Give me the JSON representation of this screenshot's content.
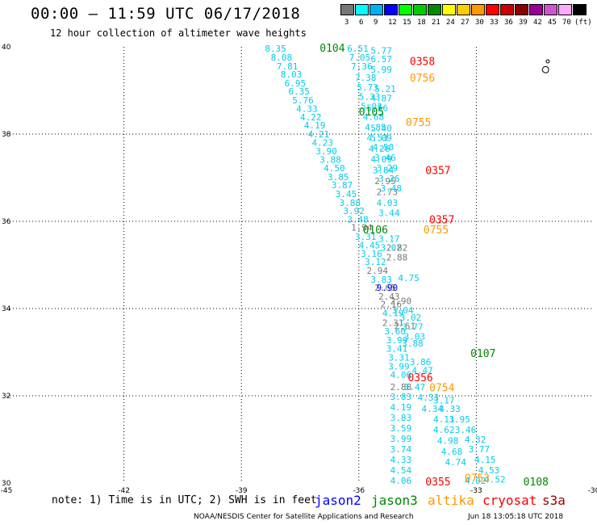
{
  "header": {
    "title": "00:00 – 11:59 UTC 06/17/2018",
    "subtitle": "12 hour collection of altimeter wave heights"
  },
  "colorbar": {
    "unit": "(ft)",
    "bins": [
      {
        "label": "3",
        "color": "#777777"
      },
      {
        "label": "6",
        "color": "#00ffff"
      },
      {
        "label": "9",
        "color": "#00b0f0"
      },
      {
        "label": "12",
        "color": "#0000ff"
      },
      {
        "label": "15",
        "color": "#00ff00"
      },
      {
        "label": "18",
        "color": "#00cc00"
      },
      {
        "label": "21",
        "color": "#008800"
      },
      {
        "label": "24",
        "color": "#ffff00"
      },
      {
        "label": "27",
        "color": "#ffcc00"
      },
      {
        "label": "30",
        "color": "#ff9900"
      },
      {
        "label": "33",
        "color": "#ff0000"
      },
      {
        "label": "36",
        "color": "#cc0000"
      },
      {
        "label": "39",
        "color": "#880000"
      },
      {
        "label": "42",
        "color": "#990099"
      },
      {
        "label": "45",
        "color": "#cc55cc"
      },
      {
        "label": "70",
        "color": "#ffaaff"
      },
      {
        "label": "",
        "color": "#000000"
      }
    ]
  },
  "map": {
    "lon_ticks": [
      "-45",
      "-42",
      "-39",
      "-36",
      "-33",
      "-30"
    ],
    "lat_ticks": [
      "40",
      "38",
      "36",
      "34",
      "32",
      "30"
    ],
    "lon_range": [
      -45,
      -30
    ],
    "lat_range": [
      30,
      40
    ],
    "colors": {
      "cyan": "#00ccee",
      "gray": "#777777",
      "blue": "#0000ff",
      "green": "#008800",
      "red": "#ff0000",
      "orange": "#ff9900"
    },
    "points": [
      {
        "t": "8.35",
        "lon": -38.4,
        "lat": 39.96,
        "c": "cyan"
      },
      {
        "t": "8.08",
        "lon": -38.25,
        "lat": 39.76,
        "c": "cyan"
      },
      {
        "t": "7.81",
        "lon": -38.1,
        "lat": 39.56,
        "c": "cyan"
      },
      {
        "t": "8.03",
        "lon": -38.0,
        "lat": 39.37,
        "c": "cyan"
      },
      {
        "t": "6.95",
        "lon": -37.9,
        "lat": 39.17,
        "c": "cyan"
      },
      {
        "t": "6.35",
        "lon": -37.8,
        "lat": 38.98,
        "c": "cyan"
      },
      {
        "t": "5.76",
        "lon": -37.7,
        "lat": 38.78,
        "c": "cyan"
      },
      {
        "t": "4.33",
        "lon": -37.6,
        "lat": 38.58,
        "c": "cyan"
      },
      {
        "t": "4.22",
        "lon": -37.5,
        "lat": 38.39,
        "c": "cyan"
      },
      {
        "t": "4.19",
        "lon": -37.4,
        "lat": 38.2,
        "c": "cyan"
      },
      {
        "t": "4.21",
        "lon": -37.3,
        "lat": 38.0,
        "c": "cyan"
      },
      {
        "t": "4.23",
        "lon": -37.2,
        "lat": 37.81,
        "c": "cyan"
      },
      {
        "t": "3.90",
        "lon": -37.1,
        "lat": 37.61,
        "c": "cyan"
      },
      {
        "t": "3.88",
        "lon": -37.0,
        "lat": 37.42,
        "c": "cyan"
      },
      {
        "t": "4.50",
        "lon": -36.9,
        "lat": 37.22,
        "c": "cyan"
      },
      {
        "t": "3.85",
        "lon": -36.8,
        "lat": 37.02,
        "c": "cyan"
      },
      {
        "t": "3.87",
        "lon": -36.7,
        "lat": 36.83,
        "c": "cyan"
      },
      {
        "t": "3.45",
        "lon": -36.6,
        "lat": 36.63,
        "c": "cyan"
      },
      {
        "t": "3.88",
        "lon": -36.5,
        "lat": 36.43,
        "c": "cyan"
      },
      {
        "t": "3.92",
        "lon": -36.4,
        "lat": 36.24,
        "c": "cyan"
      },
      {
        "t": "3.48",
        "lon": -36.3,
        "lat": 36.05,
        "c": "cyan"
      },
      {
        "t": "1.94",
        "lon": -36.2,
        "lat": 35.86,
        "c": "gray"
      },
      {
        "t": "3.31",
        "lon": -36.1,
        "lat": 35.65,
        "c": "cyan"
      },
      {
        "t": "4.45",
        "lon": -36.0,
        "lat": 35.45,
        "c": "cyan"
      },
      {
        "t": "3.16",
        "lon": -35.95,
        "lat": 35.26,
        "c": "cyan"
      },
      {
        "t": "3.12",
        "lon": -35.85,
        "lat": 35.07,
        "c": "cyan"
      },
      {
        "t": "2.94",
        "lon": -35.8,
        "lat": 34.87,
        "c": "gray"
      },
      {
        "t": "3.83",
        "lon": -35.7,
        "lat": 34.67,
        "c": "cyan"
      },
      {
        "t": "2.65",
        "lon": -35.6,
        "lat": 34.48,
        "c": "gray"
      },
      {
        "t": "9.90",
        "lon": -35.55,
        "lat": 34.48,
        "c": "blue"
      },
      {
        "t": "2.43",
        "lon": -35.5,
        "lat": 34.28,
        "c": "gray"
      },
      {
        "t": "2.16",
        "lon": -35.45,
        "lat": 34.1,
        "c": "gray"
      },
      {
        "t": "4.19",
        "lon": -35.4,
        "lat": 33.9,
        "c": "cyan"
      },
      {
        "t": "2.31",
        "lon": -35.4,
        "lat": 33.68,
        "c": "gray"
      },
      {
        "t": "3.60",
        "lon": -35.35,
        "lat": 33.48,
        "c": "cyan"
      },
      {
        "t": "3.99",
        "lon": -35.3,
        "lat": 33.28,
        "c": "cyan"
      },
      {
        "t": "3.41",
        "lon": -35.3,
        "lat": 33.08,
        "c": "cyan"
      },
      {
        "t": "3.31",
        "lon": -35.25,
        "lat": 32.88,
        "c": "cyan"
      },
      {
        "t": "3.99",
        "lon": -35.25,
        "lat": 32.68,
        "c": "cyan"
      },
      {
        "t": "4.06",
        "lon": -35.2,
        "lat": 32.48,
        "c": "cyan"
      },
      {
        "t": "2.88",
        "lon": -35.2,
        "lat": 32.2,
        "c": "gray"
      },
      {
        "t": "3.83",
        "lon": -35.2,
        "lat": 31.98,
        "c": "cyan"
      },
      {
        "t": "4.19",
        "lon": -35.2,
        "lat": 31.74,
        "c": "cyan"
      },
      {
        "t": "3.83",
        "lon": -35.2,
        "lat": 31.5,
        "c": "cyan"
      },
      {
        "t": "3.59",
        "lon": -35.2,
        "lat": 31.26,
        "c": "cyan"
      },
      {
        "t": "3.99",
        "lon": -35.2,
        "lat": 31.02,
        "c": "cyan"
      },
      {
        "t": "3.74",
        "lon": -35.2,
        "lat": 30.78,
        "c": "cyan"
      },
      {
        "t": "4.33",
        "lon": -35.2,
        "lat": 30.54,
        "c": "cyan"
      },
      {
        "t": "4.54",
        "lon": -35.2,
        "lat": 30.3,
        "c": "cyan"
      },
      {
        "t": "4.06",
        "lon": -35.2,
        "lat": 30.06,
        "c": "cyan"
      },
      {
        "t": "6.51",
        "lon": -36.3,
        "lat": 39.96,
        "c": "cyan"
      },
      {
        "t": "7.05",
        "lon": -36.25,
        "lat": 39.76,
        "c": "cyan"
      },
      {
        "t": "7.36",
        "lon": -36.2,
        "lat": 39.56,
        "c": "cyan"
      },
      {
        "t": "7.38",
        "lon": -36.1,
        "lat": 39.3,
        "c": "cyan"
      },
      {
        "t": "5.73",
        "lon": -36.05,
        "lat": 39.07,
        "c": "cyan"
      },
      {
        "t": "5.33",
        "lon": -36.0,
        "lat": 38.86,
        "c": "cyan"
      },
      {
        "t": "5.03",
        "lon": -35.95,
        "lat": 38.64,
        "c": "cyan"
      },
      {
        "t": "4.68",
        "lon": -35.9,
        "lat": 38.4,
        "c": "cyan"
      },
      {
        "t": "4.85",
        "lon": -35.85,
        "lat": 38.16,
        "c": "cyan"
      },
      {
        "t": "4.53",
        "lon": -35.8,
        "lat": 37.92,
        "c": "cyan"
      },
      {
        "t": "4.26",
        "lon": -35.75,
        "lat": 37.67,
        "c": "cyan"
      },
      {
        "t": "4.09",
        "lon": -35.7,
        "lat": 37.43,
        "c": "cyan"
      },
      {
        "t": "3.84",
        "lon": -35.65,
        "lat": 37.18,
        "c": "cyan"
      },
      {
        "t": "2.95",
        "lon": -35.6,
        "lat": 36.93,
        "c": "gray"
      },
      {
        "t": "2.73",
        "lon": -35.55,
        "lat": 36.68,
        "c": "gray"
      },
      {
        "t": "4.03",
        "lon": -35.55,
        "lat": 36.43,
        "c": "cyan"
      },
      {
        "t": "3.44",
        "lon": -35.5,
        "lat": 36.19,
        "c": "cyan"
      },
      {
        "t": "3.17",
        "lon": -35.5,
        "lat": 35.6,
        "c": "cyan"
      },
      {
        "t": "3.02",
        "lon": -35.45,
        "lat": 35.4,
        "c": "cyan"
      },
      {
        "t": "2.82",
        "lon": -35.3,
        "lat": 35.4,
        "c": "gray"
      },
      {
        "t": "2.88",
        "lon": -35.3,
        "lat": 35.18,
        "c": "gray"
      },
      {
        "t": "2.90",
        "lon": -35.2,
        "lat": 34.18,
        "c": "gray"
      },
      {
        "t": "3.04",
        "lon": -35.15,
        "lat": 33.96,
        "c": "cyan"
      },
      {
        "t": "2.61",
        "lon": -35.1,
        "lat": 33.6,
        "c": "gray"
      },
      {
        "t": "3.88",
        "lon": -34.9,
        "lat": 33.2,
        "c": "cyan"
      },
      {
        "t": "3.86",
        "lon": -34.7,
        "lat": 32.78,
        "c": "cyan"
      },
      {
        "t": "4.47",
        "lon": -34.65,
        "lat": 32.58,
        "c": "cyan"
      },
      {
        "t": "3.47",
        "lon": -34.85,
        "lat": 32.2,
        "c": "cyan"
      },
      {
        "t": "4.33",
        "lon": -34.5,
        "lat": 31.96,
        "c": "cyan"
      },
      {
        "t": "4.34",
        "lon": -34.4,
        "lat": 31.7,
        "c": "cyan"
      },
      {
        "t": "4.11",
        "lon": -34.1,
        "lat": 31.46,
        "c": "cyan"
      },
      {
        "t": "4.62",
        "lon": -34.1,
        "lat": 31.22,
        "c": "cyan"
      },
      {
        "t": "4.98",
        "lon": -34.0,
        "lat": 30.97,
        "c": "cyan"
      },
      {
        "t": "4.68",
        "lon": -33.9,
        "lat": 30.72,
        "c": "cyan"
      },
      {
        "t": "4.74",
        "lon": -33.8,
        "lat": 30.48,
        "c": "cyan"
      },
      {
        "t": "5.77",
        "lon": -35.7,
        "lat": 39.92,
        "c": "cyan"
      },
      {
        "t": "6.57",
        "lon": -35.7,
        "lat": 39.72,
        "c": "cyan"
      },
      {
        "t": "5.99",
        "lon": -35.7,
        "lat": 39.48,
        "c": "cyan"
      },
      {
        "t": "5.21",
        "lon": -35.6,
        "lat": 39.04,
        "c": "cyan"
      },
      {
        "t": "4.87",
        "lon": -35.7,
        "lat": 38.82,
        "c": "cyan"
      },
      {
        "t": "5.56",
        "lon": -35.8,
        "lat": 38.6,
        "c": "cyan"
      },
      {
        "t": "5.40",
        "lon": -35.7,
        "lat": 38.14,
        "c": "cyan"
      },
      {
        "t": "5.09",
        "lon": -35.7,
        "lat": 37.92,
        "c": "cyan"
      },
      {
        "t": "4.50",
        "lon": -35.65,
        "lat": 37.7,
        "c": "cyan"
      },
      {
        "t": "3.46",
        "lon": -35.6,
        "lat": 37.46,
        "c": "cyan"
      },
      {
        "t": "3.29",
        "lon": -35.55,
        "lat": 37.22,
        "c": "cyan"
      },
      {
        "t": "3.26",
        "lon": -35.5,
        "lat": 36.98,
        "c": "cyan"
      },
      {
        "t": "3.48",
        "lon": -35.45,
        "lat": 36.76,
        "c": "cyan"
      },
      {
        "t": "4.75",
        "lon": -35.0,
        "lat": 34.7,
        "c": "cyan"
      },
      {
        "t": "3.02",
        "lon": -34.95,
        "lat": 33.8,
        "c": "cyan"
      },
      {
        "t": "3.77",
        "lon": -34.9,
        "lat": 33.58,
        "c": "cyan"
      },
      {
        "t": "3.03",
        "lon": -34.85,
        "lat": 33.36,
        "c": "cyan"
      },
      {
        "t": "3.17",
        "lon": -34.1,
        "lat": 31.9,
        "c": "cyan"
      },
      {
        "t": "4.33",
        "lon": -33.95,
        "lat": 31.7,
        "c": "cyan"
      },
      {
        "t": "3.95",
        "lon": -33.7,
        "lat": 31.46,
        "c": "cyan"
      },
      {
        "t": "3.46",
        "lon": -33.55,
        "lat": 31.22,
        "c": "cyan"
      },
      {
        "t": "4.32",
        "lon": -33.3,
        "lat": 31.0,
        "c": "cyan"
      },
      {
        "t": "3.77",
        "lon": -33.2,
        "lat": 30.78,
        "c": "cyan"
      },
      {
        "t": "4.15",
        "lon": -33.05,
        "lat": 30.54,
        "c": "cyan"
      },
      {
        "t": "4.53",
        "lon": -32.95,
        "lat": 30.3,
        "c": "cyan"
      },
      {
        "t": "4.52",
        "lon": -32.8,
        "lat": 30.08,
        "c": "cyan"
      },
      {
        "t": "4.02",
        "lon": -33.3,
        "lat": 30.06,
        "c": "cyan"
      }
    ],
    "passes": [
      {
        "t": "0104",
        "lon": -37.0,
        "lat": 39.96,
        "c": "green"
      },
      {
        "t": "0358",
        "lon": -34.7,
        "lat": 39.66,
        "c": "red"
      },
      {
        "t": "0756",
        "lon": -34.7,
        "lat": 39.28,
        "c": "orange"
      },
      {
        "t": "0105",
        "lon": -36.0,
        "lat": 38.5,
        "c": "green"
      },
      {
        "t": "0755",
        "lon": -34.8,
        "lat": 38.26,
        "c": "orange"
      },
      {
        "t": "0357",
        "lon": -34.3,
        "lat": 37.16,
        "c": "red"
      },
      {
        "t": "0357",
        "lon": -34.2,
        "lat": 36.03,
        "c": "red"
      },
      {
        "t": "0106",
        "lon": -35.9,
        "lat": 35.8,
        "c": "green"
      },
      {
        "t": "0755",
        "lon": -34.35,
        "lat": 35.8,
        "c": "orange"
      },
      {
        "t": "0107",
        "lon": -33.15,
        "lat": 32.96,
        "c": "green"
      },
      {
        "t": "0356",
        "lon": -34.75,
        "lat": 32.41,
        "c": "red"
      },
      {
        "t": "0754",
        "lon": -34.2,
        "lat": 32.18,
        "c": "orange"
      },
      {
        "t": "0355",
        "lon": -34.3,
        "lat": 30.02,
        "c": "red"
      },
      {
        "t": "0753",
        "lon": -33.3,
        "lat": 30.1,
        "c": "orange"
      },
      {
        "t": "0108",
        "lon": -31.8,
        "lat": 30.02,
        "c": "green"
      }
    ]
  },
  "note": "note: 1) Time is in UTC; 2) SWH is in feet",
  "legend": [
    {
      "label": "jason2",
      "color": "#0000ff"
    },
    {
      "label": "jason3",
      "color": "#008800"
    },
    {
      "label": "altika",
      "color": "#ff9900"
    },
    {
      "label": "cryosat",
      "color": "#ff0000"
    },
    {
      "label": "s3a",
      "color": "#990000"
    }
  ],
  "footer": {
    "left": "NOAA/NESDIS Center for Satellite Applications and Research",
    "right": "Jun 18 13:05:18 UTC 2018"
  }
}
